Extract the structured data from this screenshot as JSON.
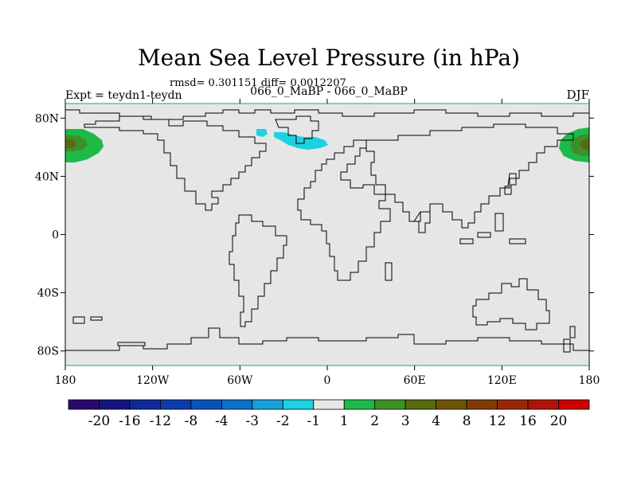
{
  "chart_data": {
    "type": "heatmap",
    "title": "Mean Sea Level Pressure (in hPa)",
    "stats_label": "rmsd= 0.301151 diff= 0.0012207",
    "experiment_label": "Expt = teydn1-teydn",
    "comparison_label": "066_0_MaBP - 066_0_MaBP",
    "season_label": "DJF",
    "lon_range": [
      -180,
      180
    ],
    "lat_range": [
      -90,
      90
    ],
    "x_ticks": [
      {
        "value": -180,
        "label": "180"
      },
      {
        "value": -120,
        "label": "120W"
      },
      {
        "value": -60,
        "label": "60W"
      },
      {
        "value": 0,
        "label": "0"
      },
      {
        "value": 60,
        "label": "60E"
      },
      {
        "value": 120,
        "label": "120E"
      },
      {
        "value": 180,
        "label": "180"
      }
    ],
    "y_ticks": [
      {
        "value": 80,
        "label": "80N"
      },
      {
        "value": 40,
        "label": "40N"
      },
      {
        "value": 0,
        "label": "0"
      },
      {
        "value": -40,
        "label": "40S"
      },
      {
        "value": -80,
        "label": "80S"
      }
    ],
    "colorbar": {
      "colors": [
        "#2a0a6e",
        "#14157e",
        "#0d2a96",
        "#0b3ca8",
        "#0a52b8",
        "#0a70c8",
        "#18a0d8",
        "#1cd2e0",
        "#e6e6e6",
        "#1dba4a",
        "#3f8f28",
        "#566b12",
        "#6b5408",
        "#7e3d08",
        "#962808",
        "#b01408",
        "#cc0000"
      ],
      "labels": [
        "-20",
        "-16",
        "-12",
        "-8",
        "-4",
        "-3",
        "-2",
        "-1",
        "1",
        "2",
        "3",
        "4",
        "8",
        "12",
        "16",
        "20"
      ]
    },
    "anomalies": [
      {
        "name": "north-pacific-positive-west",
        "lon": -180,
        "lat": 60,
        "value": 3
      },
      {
        "name": "north-pacific-positive-east",
        "lon": 180,
        "lat": 60,
        "value": 3
      },
      {
        "name": "north-atlantic-negative",
        "lon": -40,
        "lat": 67,
        "value": -1
      }
    ]
  }
}
